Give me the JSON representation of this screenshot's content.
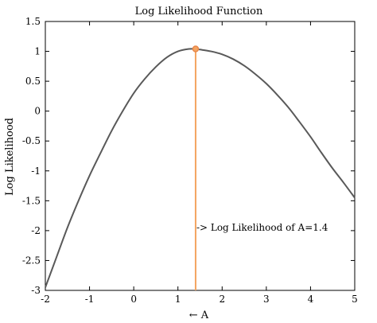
{
  "chart_data": {
    "type": "line",
    "title": "Log Likelihood Function",
    "xlabel": "← A",
    "ylabel": "Log Likelihood",
    "xlim": [
      -2,
      5
    ],
    "ylim": [
      -3,
      1.5
    ],
    "xticks": [
      -2,
      -1,
      0,
      1,
      2,
      3,
      4,
      5
    ],
    "yticks": [
      1.5,
      1,
      0.5,
      0,
      -0.5,
      -1,
      -1.5,
      -2,
      -2.5,
      -3
    ],
    "grid": false,
    "series": [
      {
        "color": "#595959",
        "x": [
          -2,
          -1.75,
          -1.5,
          -1.25,
          -1,
          -0.75,
          -0.5,
          -0.25,
          0,
          0.25,
          0.5,
          0.75,
          1,
          1.25,
          1.4,
          1.5,
          1.75,
          2,
          2.25,
          2.5,
          2.75,
          3,
          3.25,
          3.5,
          3.75,
          4,
          4.25,
          4.5,
          4.75,
          5
        ],
        "y": [
          -2.95,
          -2.45,
          -1.95,
          -1.5,
          -1.08,
          -0.7,
          -0.33,
          0.0,
          0.3,
          0.54,
          0.74,
          0.9,
          1.0,
          1.04,
          1.04,
          1.03,
          1.0,
          0.95,
          0.87,
          0.76,
          0.62,
          0.46,
          0.27,
          0.06,
          -0.18,
          -0.43,
          -0.7,
          -0.96,
          -1.2,
          -1.45
        ]
      }
    ],
    "marker": {
      "x": 1.4,
      "y": 1.04,
      "color": "#f4a460"
    },
    "annotation": {
      "text": "-> Log Likelihood of A=1.4",
      "x": 1.4,
      "y": -1.95
    }
  }
}
